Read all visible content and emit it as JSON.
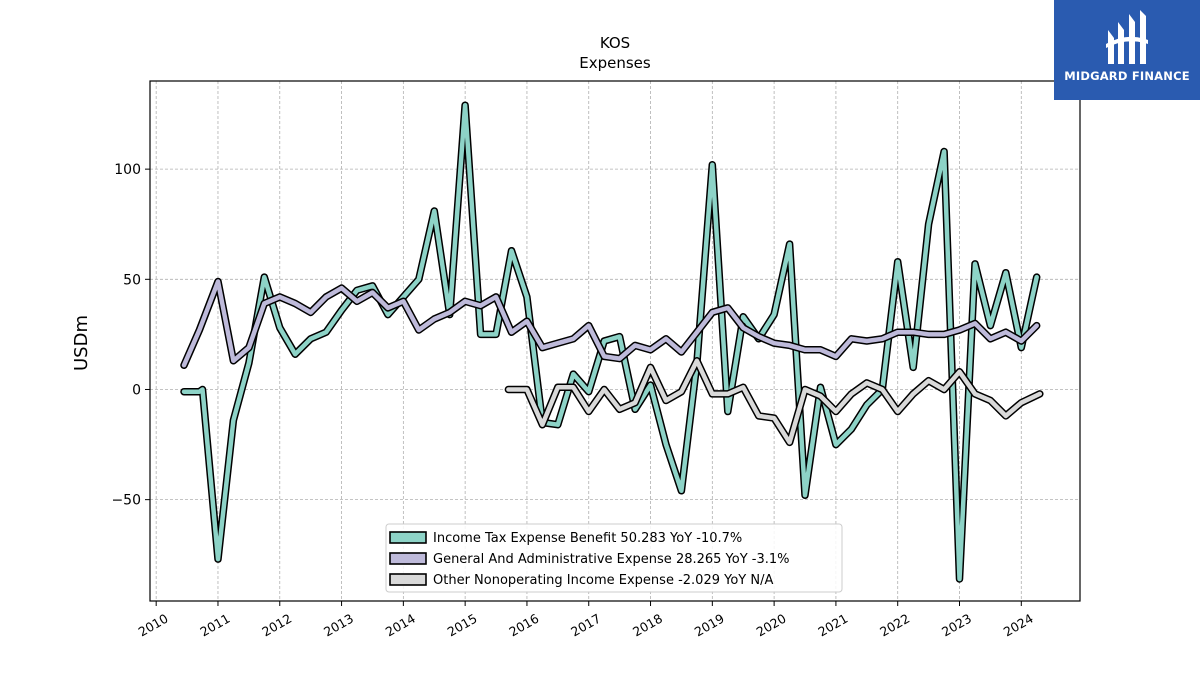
{
  "brand": {
    "name": "MIDGARD FINANCE",
    "bg_color": "#2a5bb0",
    "icon": "midgard-logo-icon"
  },
  "chart_data": {
    "type": "line",
    "title": "KOS",
    "subtitle": "Expenses",
    "ylabel": "USDm",
    "xlabel": "",
    "xlim": [
      2009.9,
      2024.95
    ],
    "ylim": [
      -96,
      140
    ],
    "x_ticks": [
      2010,
      2011,
      2012,
      2013,
      2014,
      2015,
      2016,
      2017,
      2018,
      2019,
      2020,
      2021,
      2022,
      2023,
      2024
    ],
    "x_tick_labels": [
      "2010",
      "2011",
      "2012",
      "2013",
      "2014",
      "2015",
      "2016",
      "2017",
      "2018",
      "2019",
      "2020",
      "2021",
      "2022",
      "2023",
      "2024"
    ],
    "y_ticks": [
      -50,
      0,
      50,
      100
    ],
    "y_tick_labels": [
      "−50",
      "0",
      "50",
      "100"
    ],
    "grid": true,
    "legend_position": "lower-center",
    "series": [
      {
        "name": "Income Tax Expense Benefit",
        "legend_label": "Income Tax Expense Benefit  50.283 YoY -10.7%",
        "color": "#8dd3c7",
        "x": [
          2010.45,
          2010.7,
          2010.75,
          2011.0,
          2011.25,
          2011.5,
          2011.75,
          2012.0,
          2012.25,
          2012.5,
          2012.75,
          2013.0,
          2013.25,
          2013.5,
          2013.75,
          2014.0,
          2014.25,
          2014.5,
          2014.75,
          2015.0,
          2015.25,
          2015.5,
          2015.75,
          2016.0,
          2016.25,
          2016.5,
          2016.75,
          2017.0,
          2017.25,
          2017.5,
          2017.75,
          2018.0,
          2018.25,
          2018.5,
          2018.75,
          2019.0,
          2019.25,
          2019.5,
          2019.75,
          2020.0,
          2020.25,
          2020.5,
          2020.75,
          2021.0,
          2021.25,
          2021.5,
          2021.75,
          2022.0,
          2022.25,
          2022.5,
          2022.75,
          2023.0,
          2023.25,
          2023.5,
          2023.75,
          2024.0,
          2024.25
        ],
        "y": [
          -1,
          -1,
          0,
          -77,
          -14,
          12,
          51,
          28,
          16,
          23,
          26,
          36,
          45,
          47,
          34,
          42,
          50,
          81,
          34,
          129,
          25,
          25,
          63,
          42,
          -15,
          -16,
          7,
          -1,
          22,
          24,
          -9,
          2,
          -25,
          -46,
          12,
          102,
          -10,
          33,
          23,
          34,
          66,
          -48,
          1,
          -25,
          -18,
          -7,
          0,
          58,
          10,
          75,
          108,
          -86,
          57,
          29,
          53,
          19,
          51
        ]
      },
      {
        "name": "General And Administrative Expense",
        "legend_label": "General And Administrative Expense  28.265 YoY -3.1%",
        "color": "#bebada",
        "x": [
          2010.45,
          2010.7,
          2011.0,
          2011.25,
          2011.5,
          2011.75,
          2012.0,
          2012.25,
          2012.5,
          2012.75,
          2013.0,
          2013.25,
          2013.5,
          2013.75,
          2014.0,
          2014.25,
          2014.5,
          2014.75,
          2015.0,
          2015.25,
          2015.5,
          2015.75,
          2016.0,
          2016.25,
          2016.5,
          2016.75,
          2017.0,
          2017.25,
          2017.5,
          2017.75,
          2018.0,
          2018.25,
          2018.5,
          2018.75,
          2019.0,
          2019.25,
          2019.5,
          2019.75,
          2020.0,
          2020.25,
          2020.5,
          2020.75,
          2021.0,
          2021.25,
          2021.5,
          2021.75,
          2022.0,
          2022.25,
          2022.5,
          2022.75,
          2023.0,
          2023.25,
          2023.5,
          2023.75,
          2024.0,
          2024.25
        ],
        "y": [
          11,
          27,
          49,
          13,
          19,
          39,
          42,
          39,
          35,
          42,
          46,
          40,
          44,
          37,
          40,
          27,
          32,
          35,
          40,
          38,
          42,
          26,
          31,
          19,
          21,
          23,
          29,
          15,
          14,
          20,
          18,
          23,
          17,
          26,
          35,
          37,
          28,
          24,
          21,
          20,
          18,
          18,
          15,
          23,
          22,
          23,
          26,
          26,
          25,
          25,
          27,
          30,
          23,
          26,
          22,
          29
        ]
      },
      {
        "name": "Other Nonoperating Income Expense",
        "legend_label": "Other Nonoperating Income Expense  -2.029 YoY N/A",
        "color": "#d9d9d9",
        "x": [
          2015.7,
          2016.0,
          2016.25,
          2016.5,
          2016.75,
          2017.0,
          2017.25,
          2017.5,
          2017.75,
          2018.0,
          2018.25,
          2018.5,
          2018.75,
          2019.0,
          2019.25,
          2019.5,
          2019.75,
          2020.0,
          2020.25,
          2020.5,
          2020.75,
          2021.0,
          2021.25,
          2021.5,
          2021.75,
          2022.0,
          2022.25,
          2022.5,
          2022.75,
          2023.0,
          2023.25,
          2023.5,
          2023.75,
          2024.0,
          2024.3
        ],
        "y": [
          0,
          0,
          -16,
          1,
          1,
          -10,
          0,
          -9,
          -6,
          10,
          -5,
          -1,
          13,
          -2,
          -2,
          1,
          -12,
          -13,
          -24,
          0,
          -3,
          -10,
          -2,
          3,
          0,
          -10,
          -2,
          4,
          0,
          8,
          -2,
          -5,
          -12,
          -6,
          -2
        ]
      }
    ]
  }
}
